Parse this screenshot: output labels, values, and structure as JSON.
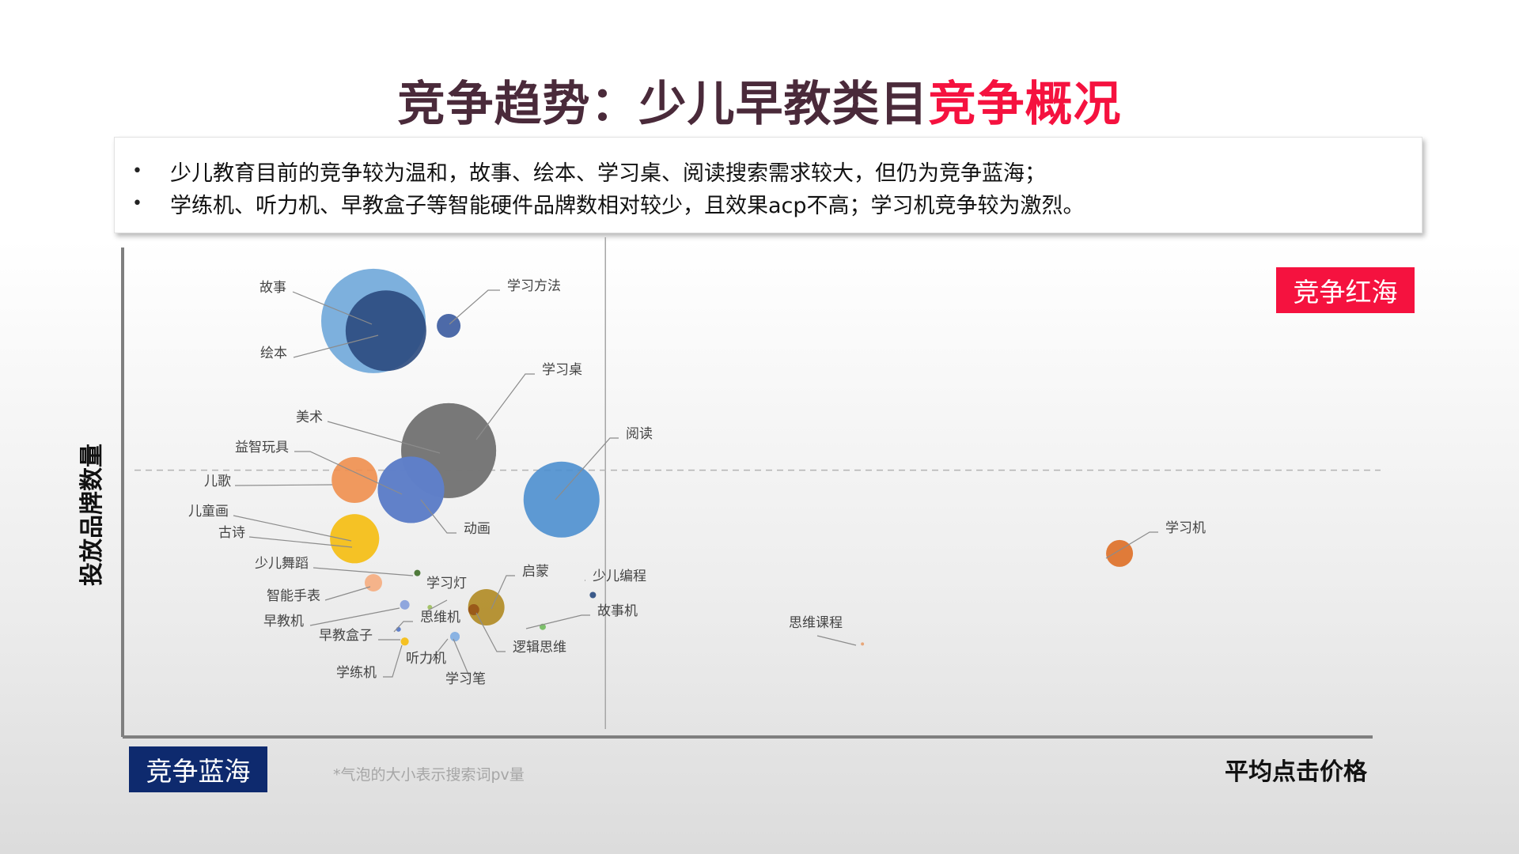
{
  "title": {
    "part1": "竞争趋势：少儿早教类目",
    "part2": "竞争概况",
    "color_part1": "#4a2a3a",
    "color_part2": "#f5123f"
  },
  "summary": {
    "bullet": "•",
    "lines": [
      "少儿教育目前的竞争较为温和，故事、绘本、学习桌、阅读搜索需求较大，但仍为竞争蓝海；",
      "学练机、听力机、早教盒子等智能硬件品牌数相对较少，且效果acp不高；学习机竞争较为激烈。"
    ]
  },
  "badges": {
    "red_ocean": "竞争红海",
    "blue_ocean": "竞争蓝海",
    "red_color": "#f5123f",
    "blue_color": "#0e2a6e"
  },
  "chart_data": {
    "type": "scatter",
    "title": "",
    "xlabel": "平均点击价格",
    "ylabel": "投放品牌数量",
    "note": "*气泡的大小表示搜索词pv量",
    "xlim": [
      0,
      100
    ],
    "ylim": [
      0,
      100
    ],
    "x_divider": 38.5,
    "y_divider": 54.5,
    "grid": false,
    "legend": "none",
    "points": [
      {
        "name": "故事",
        "x": 20,
        "y": 85,
        "size": 66,
        "color": "#6fa7d9"
      },
      {
        "name": "绘本",
        "x": 21,
        "y": 83,
        "size": 51,
        "color": "#2b4a7e"
      },
      {
        "name": "学习方法",
        "x": 26,
        "y": 84,
        "size": 15,
        "color": "#4d6aa8"
      },
      {
        "name": "学习桌",
        "x": 26,
        "y": 58.5,
        "size": 60,
        "color": "#777777"
      },
      {
        "name": "美术",
        "x": 26,
        "y": 58.5,
        "size": 60,
        "color": "#777777"
      },
      {
        "name": "阅读",
        "x": 35,
        "y": 48.5,
        "size": 48,
        "color": "#4d8fcf"
      },
      {
        "name": "益智玩具",
        "x": 23,
        "y": 50.5,
        "size": 42,
        "color": "#5f7fc9"
      },
      {
        "name": "动画",
        "x": 23,
        "y": 50.5,
        "size": 42,
        "color": "#5f7fc9"
      },
      {
        "name": "儿歌",
        "x": 18.5,
        "y": 52.5,
        "size": 29,
        "color": "#f08f4e"
      },
      {
        "name": "儿童画",
        "x": 18.5,
        "y": 40.5,
        "size": 31,
        "color": "#f5c123"
      },
      {
        "name": "古诗",
        "x": 18.5,
        "y": 40.5,
        "size": 31,
        "color": "#f5c123"
      },
      {
        "name": "少儿舞蹈",
        "x": 23.5,
        "y": 33.5,
        "size": 4,
        "color": "#4f7a3b"
      },
      {
        "name": "智能手表",
        "x": 20,
        "y": 31.5,
        "size": 11,
        "color": "#f5b38a"
      },
      {
        "name": "学习灯",
        "x": 24.5,
        "y": 26.5,
        "size": 3,
        "color": "#a5c36a"
      },
      {
        "name": "早教机",
        "x": 22.5,
        "y": 27,
        "size": 6,
        "color": "#8fa6dd"
      },
      {
        "name": "启蒙",
        "x": 29,
        "y": 26.5,
        "size": 23,
        "color": "#b08a22"
      },
      {
        "name": "逻辑思维",
        "x": 28,
        "y": 26,
        "size": 7,
        "color": "#9a5a1a"
      },
      {
        "name": "少儿编程",
        "x": 37.5,
        "y": 29,
        "size": 4,
        "color": "#3b5a8a"
      },
      {
        "name": "故事机",
        "x": 33.5,
        "y": 22.5,
        "size": 4,
        "color": "#7cc06a"
      },
      {
        "name": "思维机",
        "x": 22,
        "y": 22,
        "size": 3,
        "color": "#5f7fc9"
      },
      {
        "name": "早教盒子",
        "x": 22.5,
        "y": 19.5,
        "size": 5,
        "color": "#f5c123"
      },
      {
        "name": "学练机",
        "x": 22.5,
        "y": 19.5,
        "size": 5,
        "color": "#f5c123"
      },
      {
        "name": "听力机",
        "x": 26.5,
        "y": 20.5,
        "size": 6,
        "color": "#8ab3e3"
      },
      {
        "name": "学习笔",
        "x": 26.5,
        "y": 20.5,
        "size": 6,
        "color": "#8ab3e3"
      },
      {
        "name": "思维课程",
        "x": 59,
        "y": 19,
        "size": 2,
        "color": "#e8a77a"
      },
      {
        "name": "学习机",
        "x": 79.5,
        "y": 37.5,
        "size": 17,
        "color": "#e07b39"
      }
    ]
  }
}
